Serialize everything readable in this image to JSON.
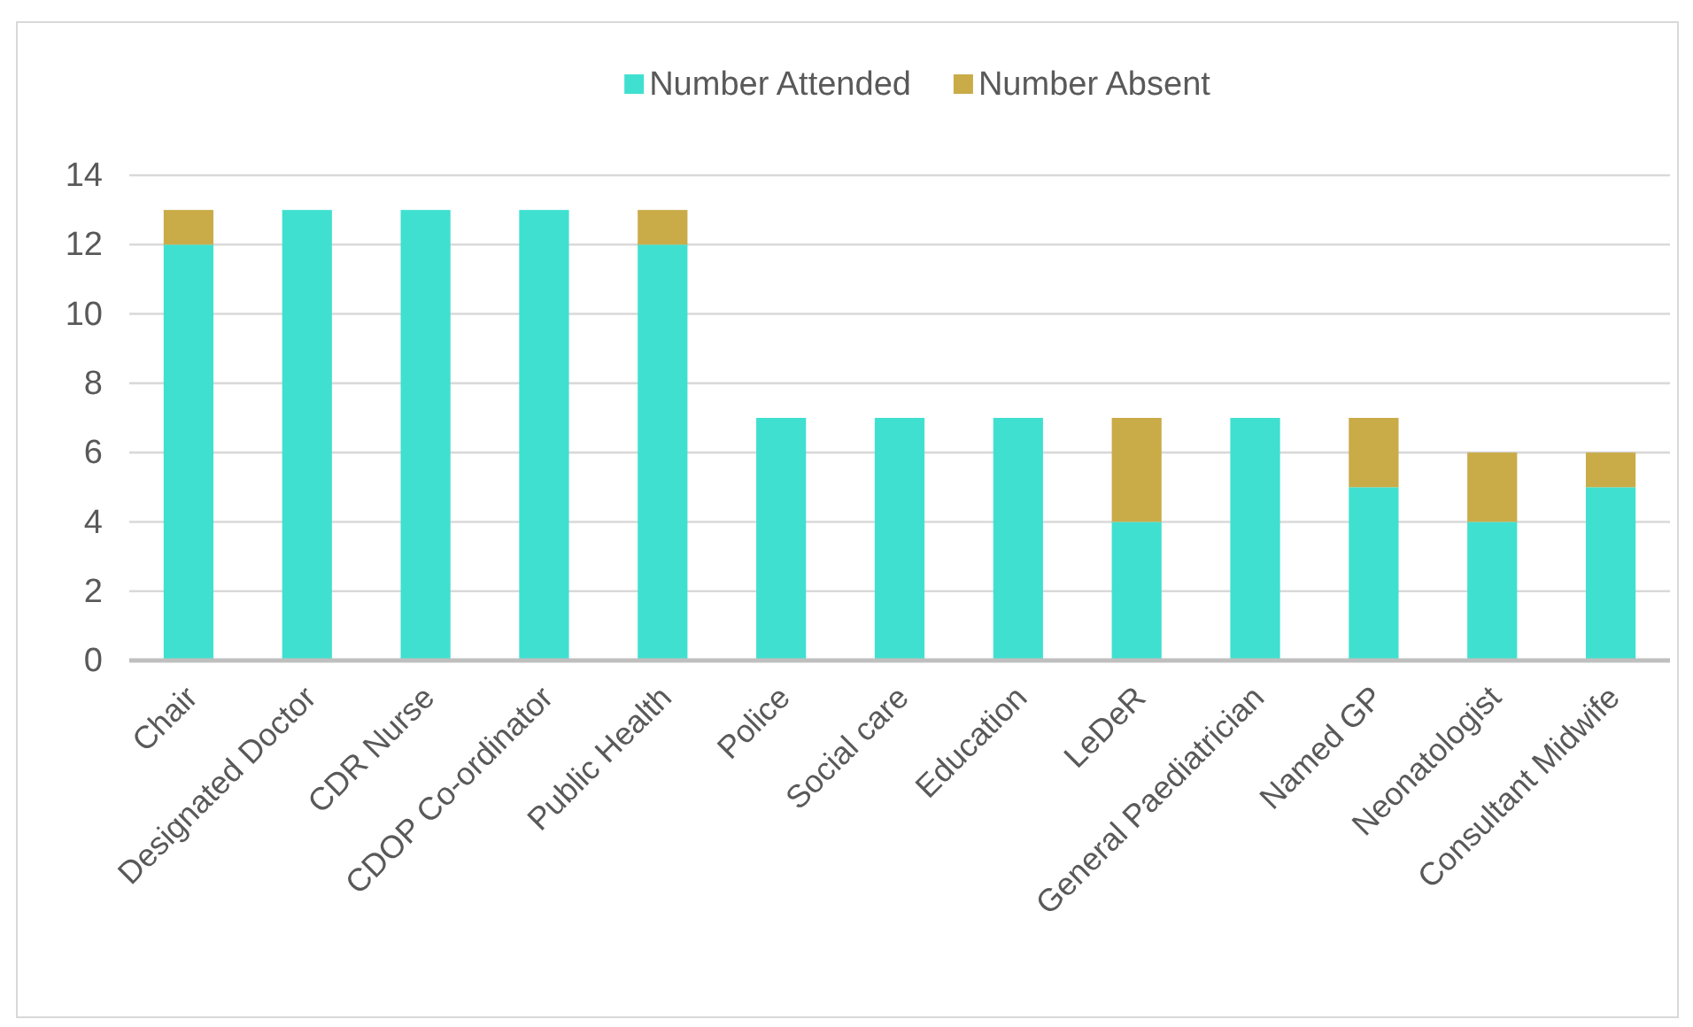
{
  "chart_data": {
    "type": "bar",
    "stacked": true,
    "categories": [
      "Chair",
      "Designated Doctor",
      "CDR Nurse",
      "CDOP Co-ordinator",
      "Public Health",
      "Police",
      "Social care",
      "Education",
      "LeDeR",
      "General Paediatrician",
      "Named GP",
      "Neonatologist",
      "Consultant Midwife"
    ],
    "series": [
      {
        "name": "Number Attended",
        "color": "#40e0d0",
        "values": [
          12,
          13,
          13,
          13,
          12,
          7,
          7,
          7,
          4,
          7,
          5,
          4,
          5
        ]
      },
      {
        "name": "Number Absent",
        "color": "#c9ab48",
        "values": [
          1,
          0,
          0,
          0,
          1,
          0,
          0,
          0,
          3,
          0,
          2,
          2,
          1
        ]
      }
    ],
    "ylim": [
      0,
      14
    ],
    "yticks": [
      0,
      2,
      4,
      6,
      8,
      10,
      12,
      14
    ],
    "grid": "y",
    "legend": "top"
  }
}
